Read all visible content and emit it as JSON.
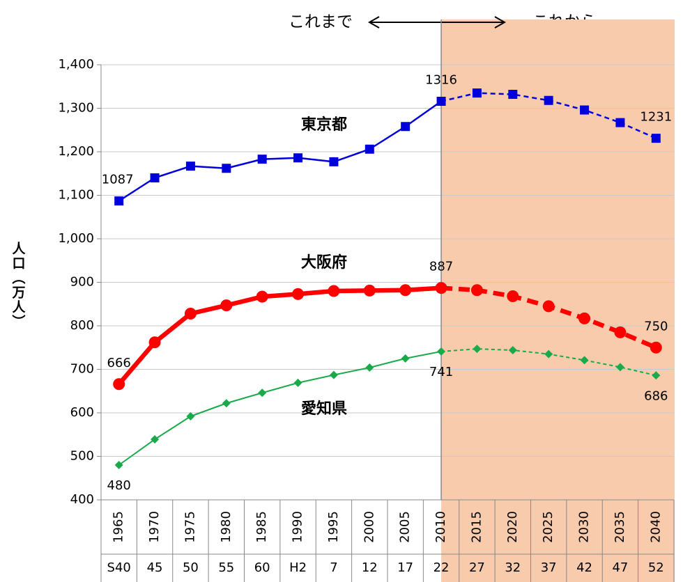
{
  "chart_data": {
    "type": "line",
    "header_past": "これまで",
    "header_future": "これから",
    "y_label": "人口（万人）",
    "categories": [
      "1965",
      "1970",
      "1975",
      "1980",
      "1985",
      "1990",
      "1995",
      "2000",
      "2005",
      "2010",
      "2015",
      "2020",
      "2025",
      "2030",
      "2035",
      "2040"
    ],
    "era_labels": [
      "S40",
      "45",
      "50",
      "55",
      "60",
      "H2",
      "7",
      "12",
      "17",
      "22",
      "27",
      "32",
      "37",
      "42",
      "47",
      "52"
    ],
    "projection_start": "2010",
    "ylim": [
      400,
      1400
    ],
    "yticks": [
      400,
      500,
      600,
      700,
      800,
      900,
      {
        "value": 1000,
        "label": "1,000"
      },
      {
        "value": 1100,
        "label": "1,100"
      },
      {
        "value": 1200,
        "label": "1,200"
      },
      {
        "value": 1300,
        "label": "1,300"
      },
      {
        "value": 1400,
        "label": "1,400"
      }
    ],
    "grid": true,
    "series": [
      {
        "name": "東京都",
        "color": "#0000dd",
        "marker": "square",
        "label_position": "above",
        "values": [
          1087,
          1140,
          1167,
          1162,
          1183,
          1186,
          1177,
          1206,
          1258,
          1316,
          1335,
          1332,
          1318,
          1296,
          1267,
          1231
        ],
        "value_labels": [
          "1087",
          null,
          null,
          null,
          null,
          null,
          null,
          null,
          null,
          "1316",
          null,
          null,
          null,
          null,
          null,
          "1231"
        ]
      },
      {
        "name": "大阪府",
        "color": "#ff0000",
        "marker": "circle",
        "label_position": "above",
        "values": [
          666,
          762,
          828,
          847,
          867,
          873,
          880,
          881,
          882,
          887,
          882,
          868,
          845,
          817,
          785,
          750
        ],
        "value_labels": [
          "666",
          null,
          null,
          null,
          null,
          null,
          null,
          null,
          null,
          "887",
          null,
          null,
          null,
          null,
          null,
          "750"
        ]
      },
      {
        "name": "愛知県",
        "color": "#1aaa4a",
        "marker": "diamond",
        "label_position": "below",
        "values": [
          480,
          539,
          592,
          622,
          646,
          669,
          687,
          704,
          725,
          741,
          747,
          744,
          735,
          721,
          705,
          686
        ],
        "value_labels": [
          "480",
          null,
          null,
          null,
          null,
          null,
          null,
          null,
          null,
          "741",
          null,
          null,
          null,
          null,
          null,
          "686"
        ]
      }
    ]
  }
}
